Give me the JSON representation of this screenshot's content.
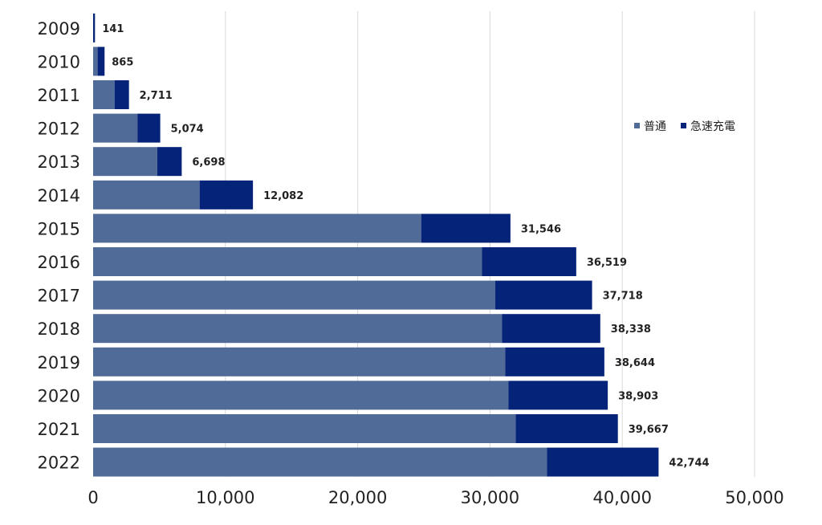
{
  "chart_data": {
    "type": "bar",
    "orientation": "horizontal",
    "stacked": true,
    "categories": [
      "2009",
      "2010",
      "2011",
      "2012",
      "2013",
      "2014",
      "2015",
      "2016",
      "2017",
      "2018",
      "2019",
      "2020",
      "2021",
      "2022"
    ],
    "series": [
      {
        "name": "普通",
        "color": "#516b98",
        "values": [
          0,
          340,
          1620,
          3350,
          4850,
          8050,
          24800,
          29400,
          30400,
          30900,
          31150,
          31400,
          31950,
          34300
        ]
      },
      {
        "name": "急速充電",
        "color": "#06237a",
        "values": [
          141,
          525,
          1091,
          1724,
          1848,
          4032,
          6746,
          7119,
          7318,
          7438,
          7494,
          7503,
          7717,
          8444
        ]
      }
    ],
    "total_labels": [
      "141",
      "865",
      "2,711",
      "5,074",
      "6,698",
      "12,082",
      "31,546",
      "36,519",
      "37,718",
      "38,338",
      "38,644",
      "38,903",
      "39,667",
      "42,744"
    ],
    "totals": [
      141,
      865,
      2711,
      5074,
      6698,
      12082,
      31546,
      36519,
      37718,
      38338,
      38644,
      38903,
      39667,
      42744
    ],
    "x_ticks": [
      "0",
      "10,000",
      "20,000",
      "30,000",
      "40,000",
      "50,000"
    ],
    "xlim": [
      0,
      50000
    ],
    "grid": "vertical",
    "legend_position": "right",
    "title": "",
    "xlabel": "",
    "ylabel": ""
  }
}
